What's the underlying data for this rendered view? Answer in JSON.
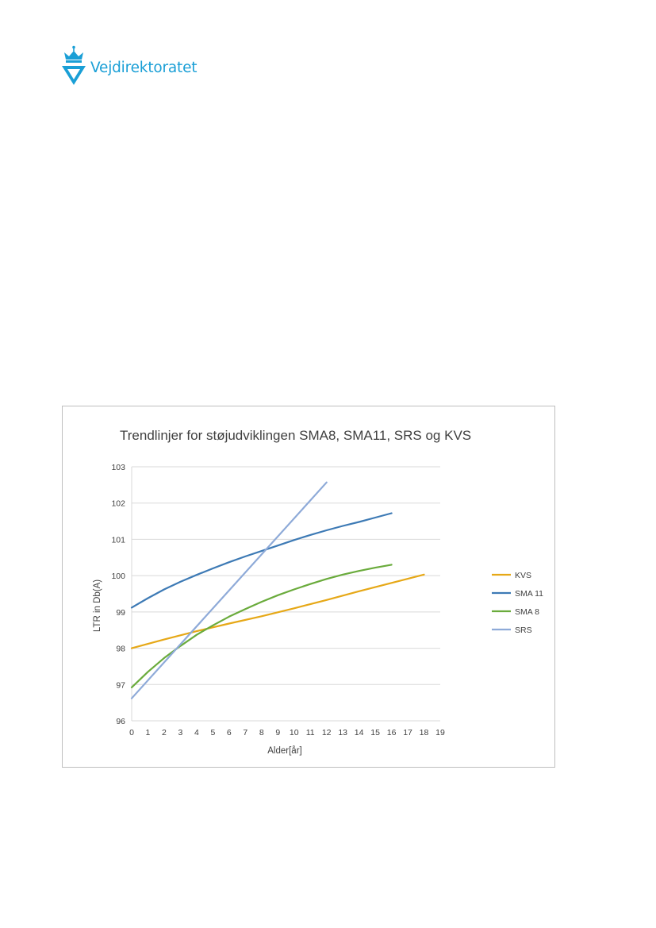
{
  "header": {
    "logo_text": "Vejdirektoratet",
    "brand_color": "#1a9fd6"
  },
  "chart_data": {
    "type": "line",
    "title": "Trendlinjer for støjudviklingen SMA8, SMA11, SRS og KVS",
    "xlabel": "Alder[år]",
    "ylabel": "LTR in Db(A)",
    "xlim": [
      0,
      19
    ],
    "ylim": [
      96,
      103
    ],
    "x_ticks": [
      0,
      1,
      2,
      3,
      4,
      5,
      6,
      7,
      8,
      9,
      10,
      11,
      12,
      13,
      14,
      15,
      16,
      17,
      18,
      19
    ],
    "y_ticks": [
      96,
      97,
      98,
      99,
      100,
      101,
      102,
      103
    ],
    "grid": "horizontal",
    "legend_position": "right",
    "series": [
      {
        "name": "KVS",
        "color": "#e6a817",
        "x": [
          0,
          2,
          4,
          6,
          8,
          10,
          12,
          14,
          16,
          18
        ],
        "y": [
          98.0,
          98.24,
          98.47,
          98.68,
          98.88,
          99.1,
          99.33,
          99.57,
          99.8,
          100.03
        ]
      },
      {
        "name": "SMA 11",
        "color": "#3d7ab5",
        "x": [
          0,
          1,
          2,
          3,
          4,
          5,
          6,
          7,
          8,
          9,
          10,
          11,
          12,
          13,
          14,
          15,
          16
        ],
        "y": [
          99.12,
          99.38,
          99.62,
          99.83,
          100.02,
          100.2,
          100.37,
          100.53,
          100.68,
          100.83,
          100.98,
          101.12,
          101.25,
          101.37,
          101.48,
          101.6,
          101.72
        ]
      },
      {
        "name": "SMA 8",
        "color": "#6aab3c",
        "x": [
          0,
          1,
          2,
          3,
          4,
          5,
          6,
          7,
          8,
          9,
          10,
          11,
          12,
          13,
          14,
          15,
          16
        ],
        "y": [
          96.92,
          97.35,
          97.73,
          98.06,
          98.37,
          98.63,
          98.87,
          99.08,
          99.28,
          99.46,
          99.62,
          99.77,
          99.91,
          100.03,
          100.13,
          100.22,
          100.3
        ]
      },
      {
        "name": "SRS",
        "color": "#8eaad8",
        "x": [
          0,
          12
        ],
        "y": [
          96.62,
          102.57
        ]
      }
    ]
  }
}
